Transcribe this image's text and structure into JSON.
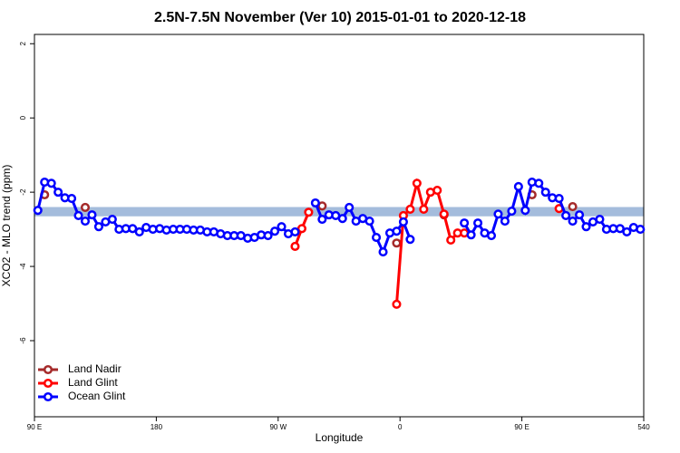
{
  "chart_data": {
    "type": "line",
    "title": "2.5N-7.5N November (Ver 10)   2015-01-01 to 2020-12-18",
    "x_label": "Longitude",
    "y_label": "XCO2 - MLO trend (ppm)",
    "xlim": [
      90,
      540
    ],
    "ylim": [
      -8.05,
      2.25
    ],
    "xticks": [
      {
        "value": 90,
        "label": "90 E"
      },
      180,
      {
        "value": 270,
        "label": "90 W"
      },
      {
        "value": 360,
        "label": "0"
      },
      {
        "value": 450,
        "label": "90 E"
      },
      540
    ],
    "yticks": [
      2,
      0,
      -2,
      -4,
      -6
    ],
    "band": [
      -2.65,
      -2.4
    ],
    "band_color": "#a4bcdc",
    "legend": "bottom-left",
    "series": [
      {
        "name": "Land Nadir",
        "color": "#a52a2a",
        "x": [
          97.5,
          112.5,
          127.5,
          200,
          302.5,
          330,
          357.5,
          375,
          392.5,
          420,
          457.5,
          470,
          487.5
        ],
        "values": [
          -2.07,
          null,
          -2.41,
          null,
          -2.37,
          null,
          -3.37,
          null,
          -2.61,
          null,
          -2.07,
          null,
          -2.39
        ]
      },
      {
        "name": "Land Glint",
        "color": "#ff0000",
        "x": [
          282.5,
          287.5,
          292.5,
          297.5,
          357.5,
          362.5,
          367.5,
          372.5,
          377.5,
          382.5,
          387.5,
          392.5,
          397.5,
          402.5,
          407.5,
          440,
          477.5
        ],
        "values": [
          -3.46,
          -2.98,
          -2.54,
          null,
          -5.02,
          -2.63,
          -2.46,
          -1.76,
          -2.46,
          -2.0,
          -1.95,
          -2.59,
          -3.29,
          -3.1,
          -3.1,
          null,
          -2.44
        ]
      },
      {
        "name": "Ocean Glint",
        "color": "#0000ff",
        "x": [
          92.5,
          97.5,
          102.5,
          107.5,
          112.5,
          117.5,
          122.5,
          127.5,
          132.5,
          137.5,
          142.5,
          147.5,
          152.5,
          157.5,
          162.5,
          167.5,
          172.5,
          177.5,
          182.5,
          187.5,
          192.5,
          197.5,
          202.5,
          207.5,
          212.5,
          217.5,
          222.5,
          227.5,
          232.5,
          237.5,
          242.5,
          247.5,
          252.5,
          257.5,
          262.5,
          267.5,
          272.5,
          277.5,
          282.5,
          290,
          297.5,
          302.5,
          307.5,
          312.5,
          317.5,
          322.5,
          327.5,
          332.5,
          337.5,
          342.5,
          347.5,
          352.5,
          357.5,
          362.5,
          367.5,
          390,
          407.5,
          412.5,
          417.5,
          422.5,
          427.5,
          432.5,
          437.5,
          442.5,
          447.5,
          452.5,
          457.5,
          462.5,
          467.5,
          472.5,
          477.5,
          482.5,
          487.5,
          492.5,
          497.5,
          502.5,
          507.5,
          512.5,
          517.5,
          522.5,
          527.5,
          532.5,
          537.5
        ],
        "values": [
          -2.49,
          -1.73,
          -1.76,
          -2.0,
          -2.15,
          -2.17,
          -2.63,
          -2.78,
          -2.61,
          -2.93,
          -2.8,
          -2.73,
          -3.0,
          -2.98,
          -2.98,
          -3.07,
          -2.95,
          -3.0,
          -2.98,
          -3.02,
          -3.0,
          -3.0,
          -3.0,
          -3.02,
          -3.02,
          -3.07,
          -3.07,
          -3.12,
          -3.17,
          -3.17,
          -3.17,
          -3.24,
          -3.22,
          -3.15,
          -3.17,
          -3.05,
          -2.93,
          -3.12,
          -3.07,
          null,
          -2.29,
          -2.73,
          -2.61,
          -2.63,
          -2.71,
          -2.41,
          -2.78,
          -2.71,
          -2.78,
          -3.22,
          -3.61,
          -3.1,
          -3.05,
          -2.8,
          -3.27,
          null,
          -2.83,
          -3.15,
          -2.83,
          -3.1,
          -3.17,
          -2.59,
          -2.78,
          -2.51,
          -1.85,
          -2.49,
          -1.73,
          -1.76,
          -2.0,
          -2.15,
          -2.17,
          -2.63,
          -2.78,
          -2.61,
          -2.93,
          -2.8,
          -2.73,
          -3.0,
          -2.98,
          -2.98,
          -3.07,
          -2.95,
          -3.0
        ]
      }
    ]
  }
}
